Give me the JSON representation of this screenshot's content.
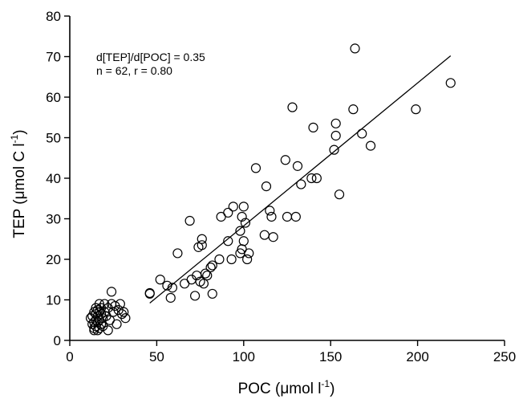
{
  "chart_data": {
    "type": "scatter",
    "xlabel": {
      "main": "POC (",
      "mu": "μ",
      "rest": "mol l",
      "sup": "-1",
      "close": ")"
    },
    "ylabel": {
      "main": "TEP (",
      "mu": "μ",
      "rest": "mol C l",
      "sup": "-1",
      "close": ")"
    },
    "annotation": {
      "line1": "d[TEP]/d[POC] = 0.35",
      "line2": "n = 62,  r = 0.80"
    },
    "xlim": [
      0,
      250
    ],
    "ylim": [
      0,
      80
    ],
    "x_ticks": [
      0,
      50,
      100,
      150,
      200,
      250
    ],
    "y_ticks": [
      0,
      10,
      20,
      30,
      40,
      50,
      60,
      70,
      80
    ],
    "grid": false,
    "fit_line": {
      "x": [
        46,
        219
      ],
      "y": [
        9.2,
        70.2
      ]
    },
    "points": [
      [
        12,
        5.5
      ],
      [
        13,
        4
      ],
      [
        13,
        6
      ],
      [
        14,
        3
      ],
      [
        14,
        7
      ],
      [
        14,
        2.5
      ],
      [
        15,
        5
      ],
      [
        15,
        8
      ],
      [
        15,
        3.5
      ],
      [
        16,
        6
      ],
      [
        16,
        4.5
      ],
      [
        16,
        2.5
      ],
      [
        17,
        7
      ],
      [
        17,
        5
      ],
      [
        17,
        3
      ],
      [
        18,
        6.5
      ],
      [
        18,
        4
      ],
      [
        18,
        8
      ],
      [
        19,
        5.5
      ],
      [
        20,
        7
      ],
      [
        20,
        9
      ],
      [
        21,
        6
      ],
      [
        22,
        2.5
      ],
      [
        22,
        8
      ],
      [
        23,
        5
      ],
      [
        24,
        9
      ],
      [
        24,
        12
      ],
      [
        25,
        7
      ],
      [
        26,
        8.5
      ],
      [
        27,
        4
      ],
      [
        28,
        7.5
      ],
      [
        29,
        9
      ],
      [
        30,
        6.5
      ],
      [
        31,
        7
      ],
      [
        32,
        5.5
      ],
      [
        14,
        4.5
      ],
      [
        15,
        6.5
      ],
      [
        16,
        7.5
      ],
      [
        17,
        9
      ],
      [
        19,
        3.5
      ],
      [
        46,
        11.7
      ],
      [
        46,
        11.5
      ],
      [
        52,
        15
      ],
      [
        56,
        13.5
      ],
      [
        58,
        10.5
      ],
      [
        59,
        13
      ],
      [
        62,
        21.5
      ],
      [
        66,
        14
      ],
      [
        69,
        29.5
      ],
      [
        70,
        15
      ],
      [
        72,
        11
      ],
      [
        73,
        16
      ],
      [
        74,
        23
      ],
      [
        75,
        14.5
      ],
      [
        76,
        23.5
      ],
      [
        76,
        25
      ],
      [
        77,
        14
      ],
      [
        78,
        16.5
      ],
      [
        79,
        16
      ],
      [
        81,
        18
      ],
      [
        82,
        11.5
      ],
      [
        82,
        18.5
      ],
      [
        86,
        20
      ],
      [
        87,
        30.5
      ],
      [
        91,
        31.5
      ],
      [
        91,
        24.5
      ],
      [
        93,
        20
      ],
      [
        94,
        33
      ],
      [
        98,
        27
      ],
      [
        98,
        21.5
      ],
      [
        99,
        30.5
      ],
      [
        99,
        22.5
      ],
      [
        100,
        33
      ],
      [
        100,
        24.5
      ],
      [
        101,
        29
      ],
      [
        102,
        20
      ],
      [
        103,
        21.5
      ],
      [
        107,
        42.5
      ],
      [
        112,
        26
      ],
      [
        113,
        38
      ],
      [
        115,
        32
      ],
      [
        116,
        30.5
      ],
      [
        117,
        25.5
      ],
      [
        124,
        44.5
      ],
      [
        125,
        30.5
      ],
      [
        128,
        57.5
      ],
      [
        130,
        30.5
      ],
      [
        131,
        43
      ],
      [
        133,
        38.5
      ],
      [
        139,
        40
      ],
      [
        140,
        52.5
      ],
      [
        142,
        40
      ],
      [
        152,
        47
      ],
      [
        153,
        50.5
      ],
      [
        153,
        53.5
      ],
      [
        155,
        36
      ],
      [
        163,
        57
      ],
      [
        164,
        72
      ],
      [
        168,
        51
      ],
      [
        173,
        48
      ],
      [
        199,
        57
      ],
      [
        219,
        63.5
      ]
    ]
  }
}
